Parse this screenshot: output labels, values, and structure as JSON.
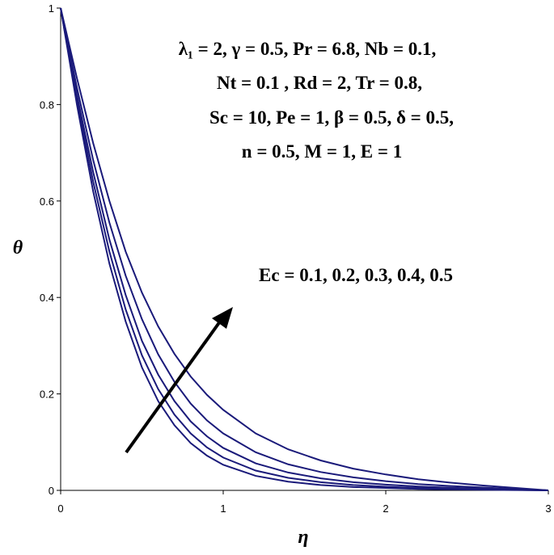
{
  "chart_data": {
    "type": "line",
    "title": "",
    "xlabel": "η",
    "ylabel": "θ",
    "xlim": [
      0,
      3
    ],
    "ylim": [
      0,
      1
    ],
    "x_ticks": [
      "0",
      "1",
      "2",
      "3"
    ],
    "y_ticks": [
      "0",
      "0.2",
      "0.4",
      "0.6",
      "0.8",
      "1"
    ],
    "grid": false,
    "annotations": {
      "parameters": [
        "λ₁ = 2,  γ = 0.5,  Pr = 6.8,  Nb = 0.1,",
        "Nt = 0.1 , Rd = 2, Tr = 0.8,",
        "Sc = 10,  Pe = 1,  β = 0.5, δ = 0.5,",
        "n = 0.5, M = 1,  E = 1"
      ],
      "trend": "Ec = 0.1, 0.2, 0.3, 0.4, 0.5"
    },
    "x": [
      0,
      0.1,
      0.2,
      0.3,
      0.4,
      0.5,
      0.6,
      0.7,
      0.8,
      0.9,
      1.0,
      1.2,
      1.4,
      1.6,
      1.8,
      2.0,
      2.2,
      2.4,
      2.6,
      2.8,
      3.0
    ],
    "series": [
      {
        "values": [
          1,
          0.8,
          0.62,
          0.47,
          0.35,
          0.255,
          0.185,
          0.135,
          0.098,
          0.072,
          0.053,
          0.03,
          0.018,
          0.011,
          0.007,
          0.005,
          0.003,
          0.002,
          0.0013,
          0.0006,
          0
        ]
      },
      {
        "values": [
          1,
          0.81,
          0.64,
          0.495,
          0.375,
          0.28,
          0.21,
          0.157,
          0.118,
          0.089,
          0.068,
          0.041,
          0.026,
          0.017,
          0.011,
          0.0075,
          0.005,
          0.0033,
          0.002,
          0.001,
          0
        ]
      },
      {
        "values": [
          1,
          0.82,
          0.66,
          0.52,
          0.405,
          0.31,
          0.24,
          0.185,
          0.143,
          0.112,
          0.088,
          0.056,
          0.037,
          0.025,
          0.017,
          0.012,
          0.008,
          0.0055,
          0.0035,
          0.0017,
          0
        ]
      },
      {
        "values": [
          1,
          0.835,
          0.685,
          0.555,
          0.445,
          0.355,
          0.282,
          0.225,
          0.18,
          0.145,
          0.118,
          0.079,
          0.054,
          0.038,
          0.027,
          0.019,
          0.013,
          0.009,
          0.0058,
          0.0028,
          0
        ]
      },
      {
        "values": [
          1,
          0.855,
          0.72,
          0.6,
          0.495,
          0.41,
          0.34,
          0.283,
          0.236,
          0.198,
          0.167,
          0.118,
          0.085,
          0.062,
          0.045,
          0.033,
          0.023,
          0.016,
          0.01,
          0.005,
          0
        ]
      }
    ],
    "line_color": "#1a1a7a"
  }
}
